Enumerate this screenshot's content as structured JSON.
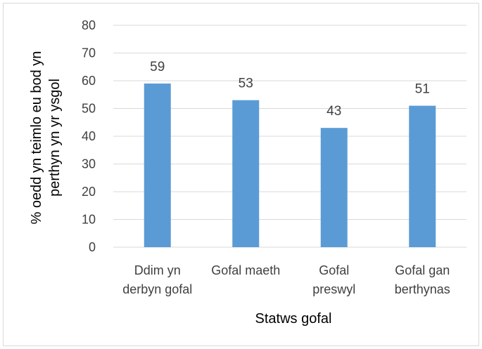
{
  "chart_data": {
    "type": "bar",
    "categories": [
      [
        "Ddim yn",
        "derbyn gofal"
      ],
      [
        "Gofal maeth"
      ],
      [
        "Gofal",
        "preswyl"
      ],
      [
        "Gofal gan",
        "berthynas"
      ]
    ],
    "values": [
      59,
      53,
      43,
      51
    ],
    "data_labels": [
      "59",
      "53",
      "43",
      "51"
    ],
    "title": "",
    "xlabel": "Statws gofal",
    "ylabel": [
      "% oedd yn teimlo eu bod yn",
      "perthyn yn yr ysgol"
    ],
    "ylim": [
      0,
      80
    ],
    "yticks": [
      0,
      10,
      20,
      30,
      40,
      50,
      60,
      70,
      80
    ],
    "grid": true,
    "legend": "none",
    "colors": {
      "bar": "#5b9bd5",
      "grid": "#d9d9d9",
      "text": "#404040"
    }
  }
}
